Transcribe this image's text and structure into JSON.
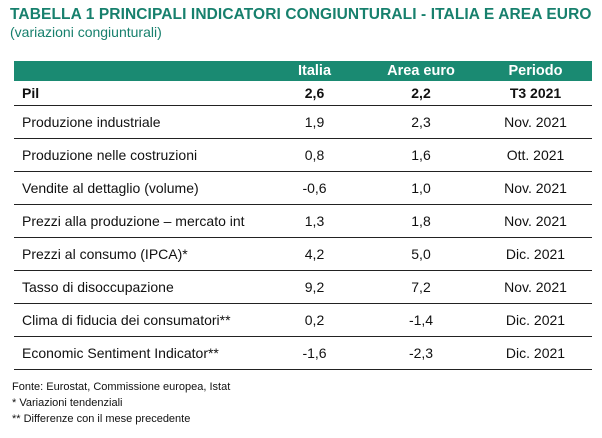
{
  "title": "TABELLA 1  PRINCIPALI INDICATORI CONGIUNTURALI - ITALIA E AREA EURO",
  "subtitle": "(variazioni congiunturali)",
  "columns": [
    "",
    "Italia",
    "Area euro",
    "Periodo"
  ],
  "rows": [
    {
      "label": "Pil",
      "italia": "2,6",
      "area_euro": "2,2",
      "periodo": "T3 2021"
    },
    {
      "label": "Produzione industriale",
      "italia": "1,9",
      "area_euro": "2,3",
      "periodo": "Nov. 2021"
    },
    {
      "label": "Produzione nelle costruzioni",
      "italia": "0,8",
      "area_euro": "1,6",
      "periodo": "Ott. 2021"
    },
    {
      "label": "Vendite al dettaglio (volume)",
      "italia": "-0,6",
      "area_euro": "1,0",
      "periodo": "Nov. 2021"
    },
    {
      "label": "Prezzi alla produzione – mercato int",
      "italia": "1,3",
      "area_euro": "1,8",
      "periodo": "Nov. 2021"
    },
    {
      "label": "Prezzi al consumo (IPCA)*",
      "italia": "4,2",
      "area_euro": "5,0",
      "periodo": "Dic. 2021"
    },
    {
      "label": "Tasso di disoccupazione",
      "italia": "9,2",
      "area_euro": "7,2",
      "periodo": "Nov. 2021"
    },
    {
      "label": "Clima di fiducia dei consumatori**",
      "italia": "0,2",
      "area_euro": "-1,4",
      "periodo": "Dic. 2021"
    },
    {
      "label": "Economic Sentiment Indicator**",
      "italia": "-1,6",
      "area_euro": "-2,3",
      "periodo": "Dic. 2021"
    }
  ],
  "notes": [
    "Fonte: Eurostat, Commissione europea, Istat",
    "* Variazioni tendenziali",
    "** Differenze con il mese precedente"
  ],
  "colors": {
    "accent": "#1a8a72",
    "title": "#17806d"
  }
}
